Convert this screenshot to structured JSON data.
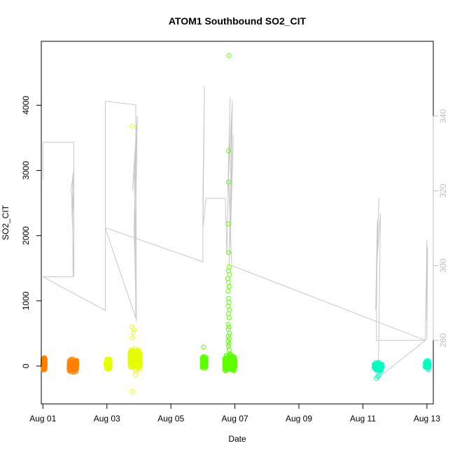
{
  "chart_data": {
    "type": "scatter",
    "title": "ATOM1 Southbound SO2_CIT",
    "xlabel": "Date",
    "ylabel": "SO2_CIT",
    "xlim": [
      -0.05,
      12.2
    ],
    "ylim": [
      -580,
      4980
    ],
    "y2lim": [
      263,
      360
    ],
    "x_ticks": [
      {
        "value": 0,
        "label": "Aug 01"
      },
      {
        "value": 2,
        "label": "Aug 03"
      },
      {
        "value": 4,
        "label": "Aug 05"
      },
      {
        "value": 6,
        "label": "Aug 07"
      },
      {
        "value": 8,
        "label": "Aug 09"
      },
      {
        "value": 10,
        "label": "Aug 11"
      },
      {
        "value": 12,
        "label": "Aug 13"
      }
    ],
    "y_ticks": [
      0,
      1000,
      2000,
      3000,
      4000
    ],
    "y2_ticks": [
      280,
      300,
      320,
      340
    ],
    "scatter_series": [
      {
        "color": "#FF8000",
        "x_start": 0.0,
        "x_end": 0.07,
        "y_range": [
          -90,
          160
        ],
        "n": 140,
        "outliers": []
      },
      {
        "color": "#FF8000",
        "x_start": 0.82,
        "x_end": 1.06,
        "y_range": [
          -110,
          130
        ],
        "n": 220,
        "outliers": []
      },
      {
        "color": "#E6FF00",
        "x_start": 1.97,
        "x_end": 2.1,
        "y_range": [
          -70,
          130
        ],
        "n": 120,
        "outliers": []
      },
      {
        "color": "#E6FF00",
        "x_start": 2.72,
        "x_end": 3.05,
        "y_range": [
          -120,
          300
        ],
        "n": 240,
        "outliers": [
          [
            2.8,
            3680
          ],
          [
            2.78,
            600
          ],
          [
            2.85,
            560
          ],
          [
            2.82,
            510
          ],
          [
            2.8,
            430
          ],
          [
            2.82,
            220
          ],
          [
            2.8,
            -390
          ],
          [
            2.9,
            -130
          ]
        ]
      },
      {
        "color": "#5CFF00",
        "x_start": 4.98,
        "x_end": 5.1,
        "y_range": [
          -70,
          180
        ],
        "n": 140,
        "outliers": [
          [
            5.02,
            290
          ]
        ]
      },
      {
        "color": "#5CFF00",
        "x_start": 5.68,
        "x_end": 6.0,
        "y_range": [
          -120,
          210
        ],
        "n": 280,
        "outliers": [
          [
            5.81,
            4760
          ],
          [
            5.8,
            3300
          ],
          [
            5.8,
            2820
          ],
          [
            5.79,
            2180
          ],
          [
            5.8,
            1740
          ],
          [
            5.82,
            1520
          ],
          [
            5.8,
            1460
          ],
          [
            5.83,
            1400
          ],
          [
            5.78,
            1340
          ],
          [
            5.8,
            1280
          ],
          [
            5.82,
            1220
          ],
          [
            5.79,
            1150
          ],
          [
            5.8,
            1040
          ],
          [
            5.81,
            980
          ],
          [
            5.79,
            920
          ],
          [
            5.83,
            860
          ],
          [
            5.8,
            800
          ],
          [
            5.82,
            740
          ],
          [
            5.79,
            640
          ],
          [
            5.81,
            600
          ],
          [
            5.8,
            560
          ],
          [
            5.83,
            500
          ],
          [
            5.8,
            460
          ],
          [
            5.82,
            420
          ],
          [
            5.79,
            380
          ],
          [
            5.81,
            340
          ],
          [
            5.8,
            300
          ],
          [
            5.82,
            250
          ]
        ]
      },
      {
        "color": "#00FFC0",
        "x_start": 10.35,
        "x_end": 10.6,
        "y_range": [
          -100,
          80
        ],
        "n": 170,
        "outliers": [
          [
            10.42,
            -190
          ],
          [
            10.5,
            -150
          ],
          [
            10.46,
            -160
          ]
        ]
      },
      {
        "color": "#00FFC0",
        "x_start": 11.95,
        "x_end": 12.07,
        "y_range": [
          -60,
          100
        ],
        "n": 100,
        "outliers": []
      }
    ],
    "line_series": {
      "color": "#c8c8c8",
      "axis": "right",
      "path": [
        [
          0.0,
          323
        ],
        [
          0.0,
          333
        ],
        [
          0.97,
          333
        ],
        [
          0.97,
          297
        ],
        [
          0.93,
          310
        ],
        [
          0.9,
          318
        ],
        [
          0.92,
          312
        ],
        [
          0.95,
          325
        ],
        [
          0.88,
          320
        ],
        [
          0.96,
          315
        ],
        [
          0.93,
          323
        ],
        [
          0.94,
          297
        ],
        [
          0.0,
          297
        ],
        [
          1.95,
          288
        ],
        [
          1.95,
          344
        ],
        [
          2.9,
          343
        ],
        [
          2.92,
          285
        ],
        [
          2.85,
          310
        ],
        [
          2.9,
          330
        ],
        [
          2.8,
          320
        ],
        [
          2.95,
          340
        ],
        [
          2.88,
          300
        ],
        [
          2.92,
          335
        ],
        [
          2.86,
          325
        ],
        [
          2.9,
          290
        ],
        [
          2.9,
          286
        ],
        [
          1.95,
          310
        ],
        [
          2.0,
          310
        ],
        [
          5.0,
          301
        ],
        [
          5.0,
          319
        ],
        [
          5.05,
          348
        ],
        [
          5.0,
          310
        ],
        [
          5.1,
          318
        ],
        [
          5.7,
          318
        ],
        [
          5.75,
          303
        ],
        [
          5.85,
          345
        ],
        [
          5.78,
          320
        ],
        [
          5.9,
          340
        ],
        [
          5.82,
          300
        ],
        [
          5.95,
          335
        ],
        [
          5.87,
          310
        ],
        [
          5.92,
          344
        ],
        [
          5.8,
          325
        ],
        [
          5.9,
          300
        ],
        [
          11.95,
          280
        ],
        [
          10.42,
          280
        ],
        [
          10.45,
          312
        ],
        [
          10.4,
          288
        ],
        [
          10.5,
          318
        ],
        [
          10.43,
          300
        ],
        [
          10.55,
          314
        ],
        [
          10.48,
          270
        ],
        [
          11.95,
          280
        ],
        [
          12.0,
          307
        ],
        [
          11.97,
          285
        ],
        [
          12.02,
          305
        ],
        [
          12.0,
          280
        ]
      ]
    }
  }
}
